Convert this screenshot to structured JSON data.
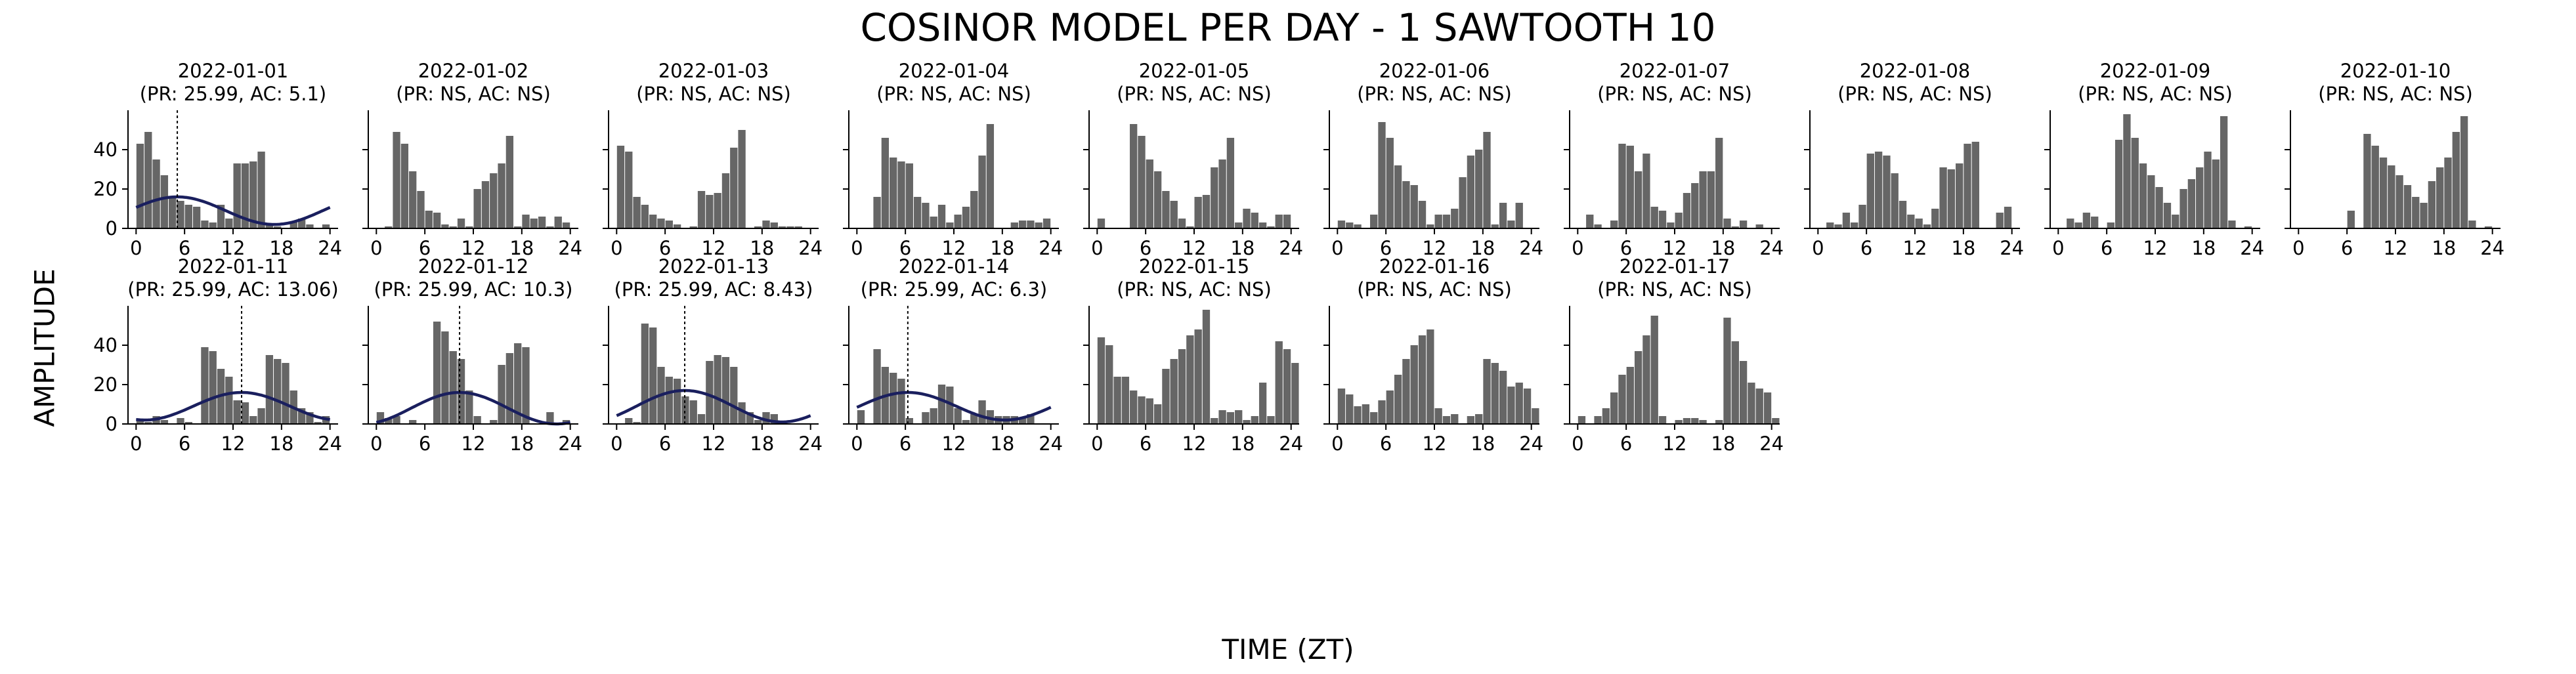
{
  "title": "COSINOR MODEL PER DAY - 1 SAWTOOTH 10",
  "ylabel": "AMPLITUDE",
  "xlabel": "TIME (ZT)",
  "colors": {
    "bar": "#666666",
    "fit": "#1a1f5e",
    "axis": "#000000"
  },
  "chart_data": {
    "type": "bar",
    "ylim": [
      0,
      60
    ],
    "yticks": [
      0,
      20,
      40
    ],
    "xticks": [
      0,
      6,
      12,
      18,
      24
    ],
    "xlim": [
      -1,
      25
    ],
    "panels": [
      {
        "date": "2022-01-01",
        "stats": "(PR: 25.99, AC: 5.1)",
        "acrophase": 5.1,
        "fit": {
          "mesor": 9,
          "amplitude": 7
        },
        "values": [
          43,
          49,
          35,
          27,
          16,
          14,
          12,
          11,
          4,
          3,
          12,
          5,
          33,
          33,
          34,
          39,
          2,
          1,
          0,
          3,
          5,
          2,
          0,
          2
        ]
      },
      {
        "date": "2022-01-02",
        "stats": "(PR: NS, AC: NS)",
        "acrophase": null,
        "values": [
          0,
          1,
          49,
          43,
          29,
          19,
          9,
          8,
          2,
          1,
          5,
          1,
          20,
          24,
          28,
          33,
          47,
          1,
          7,
          5,
          6,
          1,
          6,
          3
        ]
      },
      {
        "date": "2022-01-03",
        "stats": "(PR: NS, AC: NS)",
        "acrophase": null,
        "values": [
          42,
          39,
          16,
          12,
          7,
          5,
          4,
          2,
          0,
          1,
          19,
          17,
          18,
          28,
          41,
          50,
          0,
          1,
          4,
          3,
          1,
          1,
          1,
          0
        ]
      },
      {
        "date": "2022-01-04",
        "stats": "(PR: NS, AC: NS)",
        "acrophase": null,
        "values": [
          0,
          0,
          16,
          46,
          36,
          34,
          33,
          16,
          13,
          6,
          12,
          3,
          7,
          11,
          19,
          37,
          53,
          0,
          0,
          3,
          4,
          4,
          3,
          5
        ]
      },
      {
        "date": "2022-01-05",
        "stats": "(PR: NS, AC: NS)",
        "acrophase": null,
        "values": [
          5,
          0,
          0,
          0,
          53,
          47,
          35,
          29,
          19,
          14,
          5,
          1,
          16,
          17,
          31,
          35,
          46,
          3,
          10,
          8,
          3,
          1,
          7,
          7
        ]
      },
      {
        "date": "2022-01-06",
        "stats": "(PR: NS, AC: NS)",
        "acrophase": null,
        "values": [
          4,
          3,
          2,
          0,
          7,
          54,
          46,
          32,
          24,
          22,
          14,
          2,
          7,
          7,
          10,
          26,
          37,
          40,
          49,
          2,
          13,
          4,
          13,
          0
        ]
      },
      {
        "date": "2022-01-07",
        "stats": "(PR: NS, AC: NS)",
        "acrophase": null,
        "values": [
          0,
          7,
          2,
          0,
          4,
          43,
          42,
          29,
          38,
          11,
          9,
          3,
          8,
          18,
          23,
          29,
          29,
          46,
          5,
          1,
          4,
          0,
          2,
          0
        ]
      },
      {
        "date": "2022-01-08",
        "stats": "(PR: NS, AC: NS)",
        "acrophase": null,
        "values": [
          0,
          3,
          2,
          8,
          3,
          12,
          38,
          39,
          37,
          28,
          14,
          7,
          5,
          2,
          10,
          31,
          30,
          33,
          43,
          44,
          0,
          0,
          8,
          11
        ]
      },
      {
        "date": "2022-01-09",
        "stats": "(PR: NS, AC: NS)",
        "acrophase": null,
        "values": [
          0,
          5,
          3,
          8,
          6,
          0,
          3,
          45,
          58,
          46,
          33,
          27,
          21,
          13,
          7,
          20,
          25,
          31,
          39,
          35,
          57,
          4,
          0,
          1
        ]
      },
      {
        "date": "2022-01-10",
        "stats": "(PR: NS, AC: NS)",
        "acrophase": null,
        "values": [
          0,
          0,
          0,
          0,
          0,
          0,
          9,
          0,
          48,
          42,
          36,
          32,
          27,
          22,
          16,
          13,
          24,
          31,
          36,
          49,
          57,
          4,
          0,
          1
        ]
      },
      {
        "date": "2022-01-11",
        "stats": "(PR: 25.99, AC: 13.06)",
        "acrophase": 13.06,
        "fit": {
          "mesor": 9,
          "amplitude": 7
        },
        "values": [
          2,
          1,
          4,
          2,
          0,
          3,
          1,
          0,
          39,
          37,
          28,
          24,
          12,
          11,
          4,
          8,
          35,
          33,
          31,
          17,
          8,
          6,
          1,
          4
        ]
      },
      {
        "date": "2022-01-12",
        "stats": "(PR: 25.99, AC: 10.3)",
        "acrophase": 10.3,
        "fit": {
          "mesor": 8,
          "amplitude": 8
        },
        "values": [
          6,
          3,
          4,
          0,
          2,
          0,
          0,
          52,
          47,
          37,
          33,
          17,
          4,
          0,
          2,
          30,
          36,
          41,
          39,
          0,
          0,
          6,
          0,
          2
        ]
      },
      {
        "date": "2022-01-13",
        "stats": "(PR: 25.99, AC: 8.43)",
        "acrophase": 8.43,
        "fit": {
          "mesor": 9,
          "amplitude": 8
        },
        "values": [
          0,
          3,
          1,
          51,
          49,
          29,
          24,
          23,
          14,
          12,
          5,
          32,
          35,
          34,
          29,
          11,
          6,
          2,
          6,
          5,
          1,
          0,
          0,
          0
        ]
      },
      {
        "date": "2022-01-14",
        "stats": "(PR: 25.99, AC: 6.3)",
        "acrophase": 6.3,
        "fit": {
          "mesor": 9,
          "amplitude": 7
        },
        "values": [
          7,
          0,
          38,
          29,
          26,
          23,
          3,
          0,
          6,
          8,
          20,
          19,
          8,
          2,
          5,
          12,
          7,
          4,
          4,
          4,
          3,
          5,
          0,
          0
        ]
      },
      {
        "date": "2022-01-15",
        "stats": "(PR: NS, AC: NS)",
        "acrophase": null,
        "values": [
          44,
          40,
          24,
          24,
          17,
          14,
          13,
          10,
          28,
          33,
          38,
          45,
          48,
          58,
          3,
          7,
          6,
          7,
          2,
          4,
          21,
          4,
          42,
          38,
          31
        ]
      },
      {
        "date": "2022-01-16",
        "stats": "(PR: NS, AC: NS)",
        "acrophase": null,
        "values": [
          18,
          15,
          9,
          10,
          6,
          12,
          17,
          25,
          33,
          40,
          45,
          48,
          8,
          4,
          5,
          0,
          4,
          5,
          33,
          31,
          27,
          19,
          21,
          18,
          8
        ]
      },
      {
        "date": "2022-01-17",
        "stats": "(PR: NS, AC: NS)",
        "acrophase": null,
        "values": [
          4,
          0,
          4,
          8,
          16,
          25,
          29,
          37,
          45,
          55,
          4,
          0,
          2,
          3,
          3,
          2,
          0,
          2,
          54,
          42,
          32,
          21,
          18,
          16,
          3
        ]
      }
    ]
  }
}
